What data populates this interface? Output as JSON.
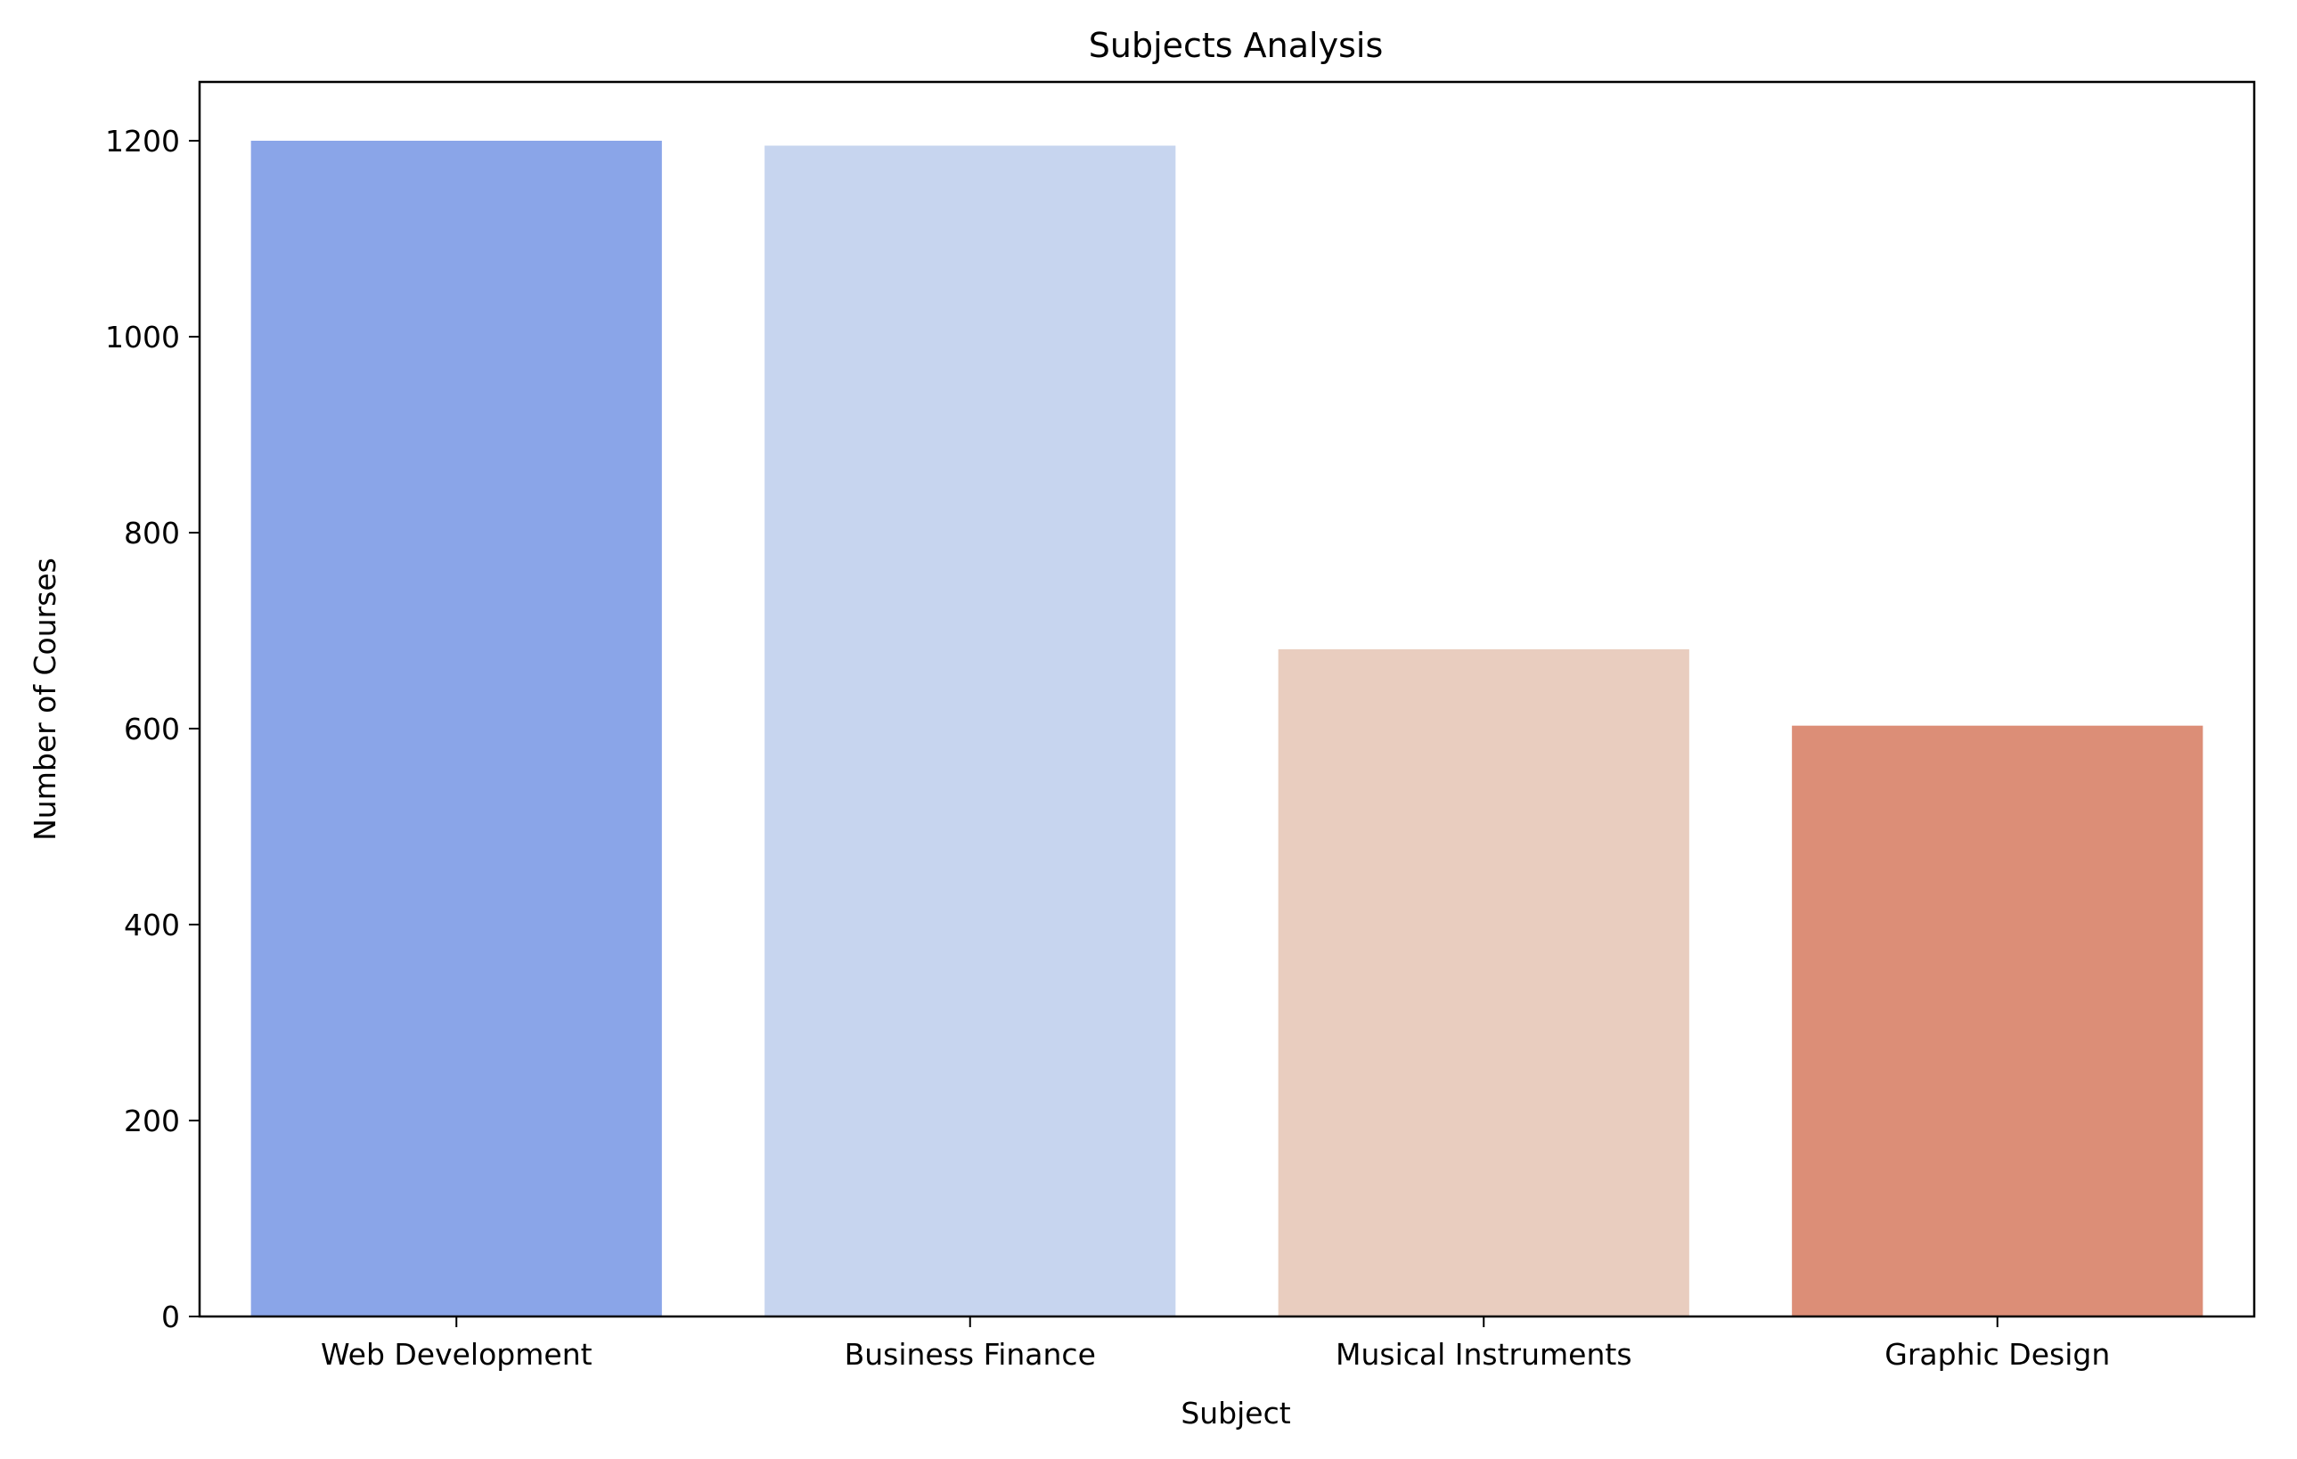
{
  "chart_data": {
    "type": "bar",
    "title": "Subjects Analysis",
    "xlabel": "Subject",
    "ylabel": "Number of Courses",
    "categories": [
      "Web Development",
      "Business Finance",
      "Musical Instruments",
      "Graphic Design"
    ],
    "values": [
      1200,
      1195,
      681,
      603
    ],
    "colors": [
      "#8aa5e8",
      "#c7d5ef",
      "#e9cdbf",
      "#dc8e77"
    ],
    "ylim": [
      0,
      1260
    ],
    "yticks": [
      0,
      200,
      400,
      600,
      800,
      1000,
      1200
    ],
    "grid": false,
    "legend": "none"
  }
}
